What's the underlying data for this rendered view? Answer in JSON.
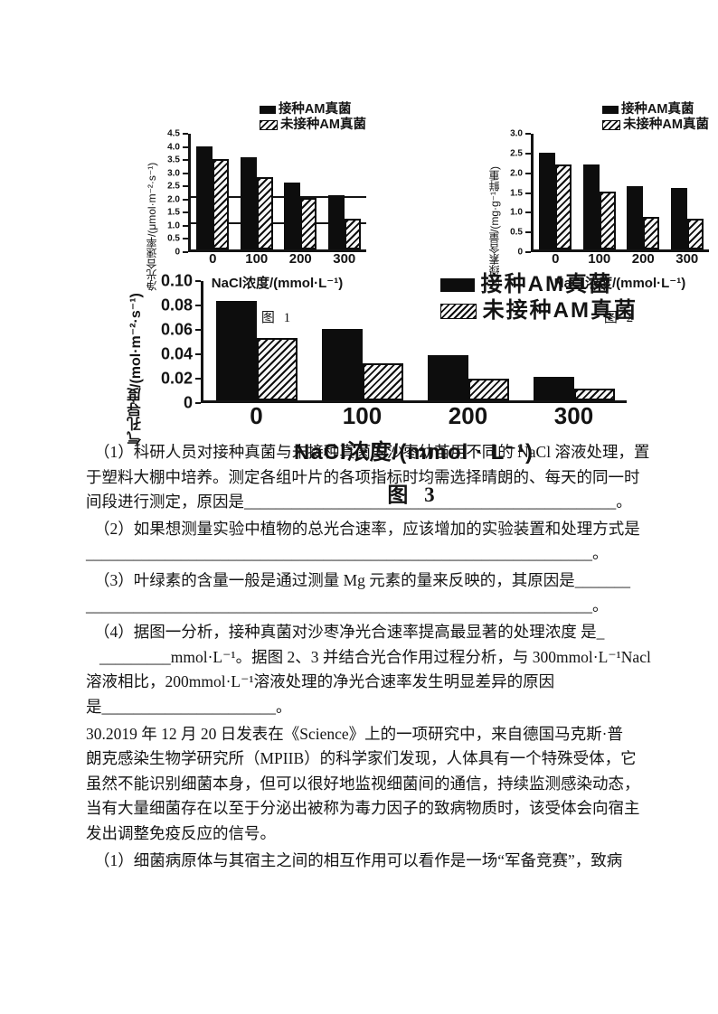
{
  "colors": {
    "ink": "#141414",
    "paper": "#ffffff"
  },
  "chart_data": [
    {
      "type": "bar",
      "caption": "图 1",
      "ylabel": "净光合速率/(μmol·m⁻²·s⁻¹)",
      "xlabel": "NaCl浓度/(mmol·L⁻¹)",
      "categories": [
        "0",
        "100",
        "200",
        "300"
      ],
      "series": [
        {
          "name": "接种AM真菌",
          "pattern": "solid",
          "values": [
            4.0,
            3.6,
            2.6,
            2.1
          ]
        },
        {
          "name": "未接种AM真菌",
          "pattern": "hatch",
          "values": [
            3.5,
            2.8,
            2.0,
            1.2
          ]
        }
      ],
      "ylim": [
        0,
        4.5
      ],
      "ytick_labels": [
        "4.5",
        "4.0",
        "3.5",
        "3.0",
        "2.5",
        "2.0",
        "1.5",
        "1.0",
        "0.5",
        "0"
      ],
      "gridlines": [
        1.0,
        2.0
      ],
      "legend_position": "top-right"
    },
    {
      "type": "bar",
      "caption": "图 2",
      "ylabel": "叶绿素含量/(mg·g⁻¹鲜重)",
      "xlabel": "NaCl浓度/(mmol·L⁻¹)",
      "categories": [
        "0",
        "100",
        "200",
        "300"
      ],
      "series": [
        {
          "name": "接种AM真菌",
          "pattern": "solid",
          "values": [
            2.5,
            2.2,
            1.65,
            1.6
          ]
        },
        {
          "name": "未接种AM真菌",
          "pattern": "hatch",
          "values": [
            2.2,
            1.5,
            0.85,
            0.8
          ]
        }
      ],
      "ylim": [
        0,
        3.0
      ],
      "ytick_labels": [
        "3.0",
        "2.5",
        "2.0",
        "1.5",
        "1.0",
        "0.5",
        "0"
      ],
      "gridlines": [],
      "legend_position": "top-right"
    },
    {
      "type": "bar",
      "caption": "图 3",
      "ylabel": "气孔导度/(mol·m⁻²·s⁻¹)",
      "xlabel": "NaCl浓度/(mmol · L⁻¹)",
      "categories": [
        "0",
        "100",
        "200",
        "300"
      ],
      "series": [
        {
          "name": "接种AM真菌",
          "pattern": "solid",
          "values": [
            0.083,
            0.06,
            0.038,
            0.02
          ]
        },
        {
          "name": "未接种AM真菌",
          "pattern": "hatch",
          "values": [
            0.052,
            0.031,
            0.018,
            0.01
          ]
        }
      ],
      "ylim": [
        0,
        0.1
      ],
      "ytick_labels": [
        "0.10",
        "0.08",
        "0.06",
        "0.04",
        "0.02",
        "0"
      ],
      "gridlines": [],
      "legend_position": "top-right"
    }
  ],
  "questions": {
    "q29_1": {
      "lines": [
        "（1）科研人员对接种真菌与未接种真菌的沙枣幼苗用不同的 NaCl 溶液处理，置",
        "于塑料大棚中培养。测定各组叶片的各项指标时均需选择晴朗的、每天的同一时",
        "间段进行测定，原因是_______________________________________________。"
      ]
    },
    "q29_2": {
      "lines": [
        "（2）如果想测量实验中植物的总光合速率，应该增加的实验装置和处理方式是",
        "________________________________________________________________。"
      ]
    },
    "q29_3": {
      "lines": [
        "（3）叶绿素的含量一般是通过测量 Mg 元素的量来反映的，其原因是_______",
        "________________________________________________________________。"
      ]
    },
    "q29_4": {
      "lines": [
        "（4）据图一分析，接种真菌对沙枣净光合速率提高最显著的处理浓度 是_",
        "_________mmol·L⁻¹。据图 2、3 并结合光合作用过程分析，与 300mmol·L⁻¹Nacl",
        "溶液相比，200mmol·L⁻¹溶液处理的净光合速率发生明显差异的原因",
        "是______________________。"
      ]
    },
    "q30": {
      "lines": [
        "30.2019 年 12 月 20 日发表在《Science》上的一项研究中，来自德国马克斯·普",
        "朗克感染生物学研究所（MPIIB）的科学家们发现，人体具有一个特殊受体，它",
        "虽然不能识别细菌本身，但可以很好地监视细菌间的通信，持续监测感染动态，",
        "当有大量细菌存在以至于分泌出被称为毒力因子的致病物质时，该受体会向宿主",
        "发出调整免疫反应的信号。"
      ]
    },
    "q30_1": {
      "lines": [
        "（1）细菌病原体与其宿主之间的相互作用可以看作是一场“军备竞赛”，致病"
      ]
    }
  }
}
